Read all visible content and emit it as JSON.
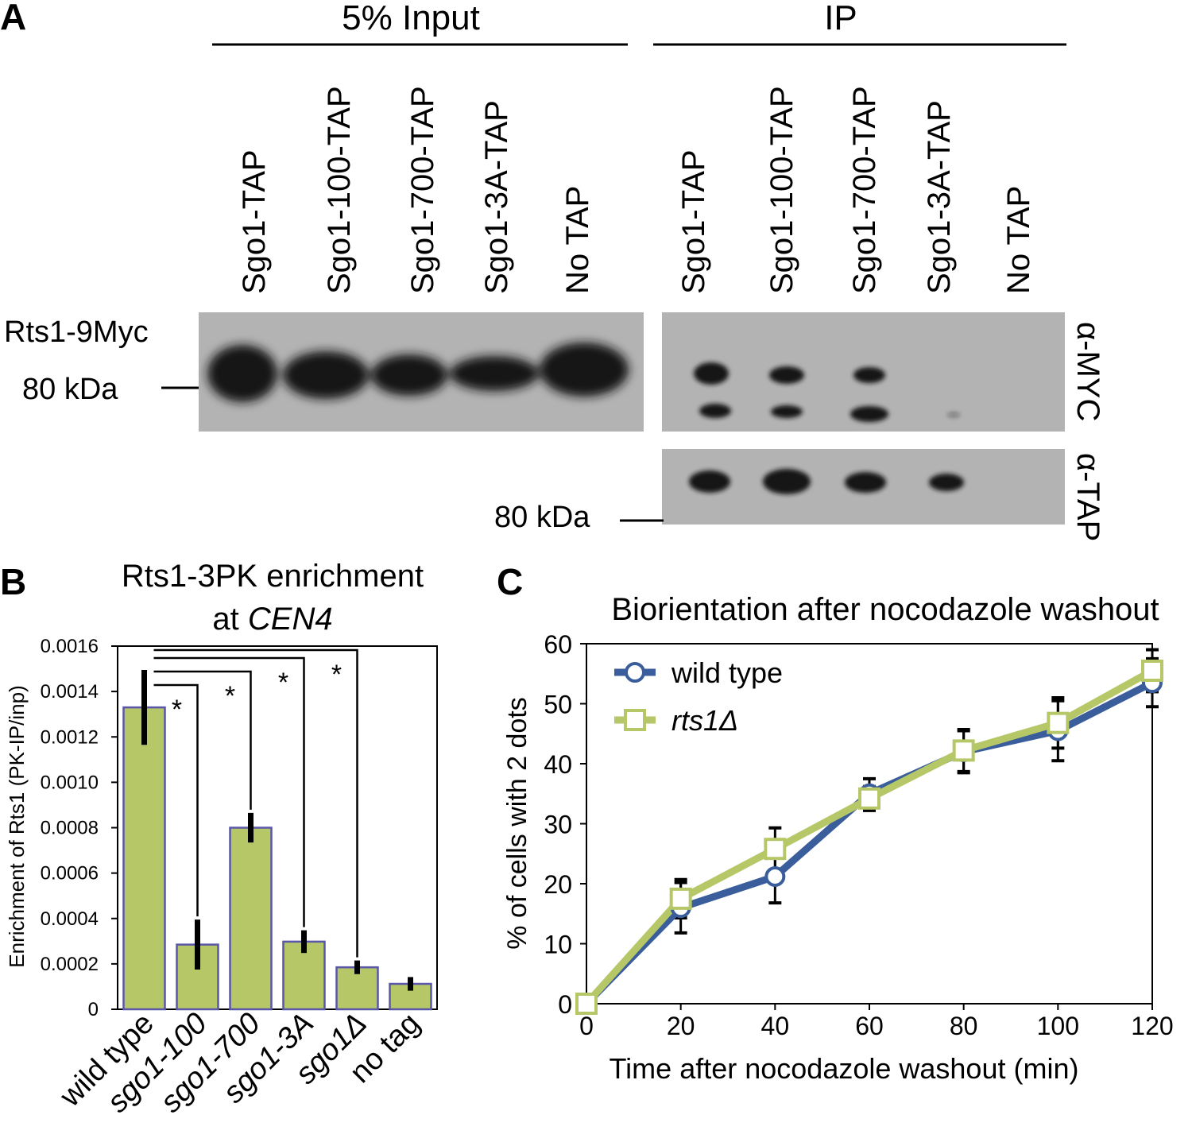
{
  "colors": {
    "blot_bg": "#b3b3b3",
    "band": "#141414",
    "bar_fill": "#b5c767",
    "bar_stroke": "#5a56a8",
    "wt_line": "#3a5d9c",
    "rts_line": "#b5c767"
  },
  "panel_a": {
    "label": "A",
    "input_header": "5% Input",
    "ip_header": "IP",
    "input_lanes": [
      "Sgo1-TAP",
      "Sgo1-100-TAP",
      "Sgo1-700-TAP",
      "Sgo1-3A-TAP",
      "No TAP"
    ],
    "ip_lanes": [
      "Sgo1-TAP",
      "Sgo1-100-TAP",
      "Sgo1-700-TAP",
      "Sgo1-3A-TAP",
      "No TAP"
    ],
    "protein_label": "Rts1-9Myc",
    "marker_left": "80 kDa",
    "marker_right": "80 kDa",
    "antibody_myc": "α-MYC",
    "antibody_tap": "α-TAP"
  },
  "chart_data": [
    {
      "panel": "B",
      "type": "bar",
      "title": "Rts1-3PK enrichment",
      "title_line2_prefix": "at ",
      "title_line2_italic": "CEN4",
      "ylabel": "Enrichment of Rts1 (PK-IP/inp)",
      "ylim": [
        0,
        0.0016
      ],
      "yticks": [
        "0",
        "0.0002",
        "0.0004",
        "0.0006",
        "0.0008",
        "0.0010",
        "0.0012",
        "0.0014",
        "0.0016"
      ],
      "categories": [
        "wild type",
        "sgo1-100",
        "sgo1-700",
        "sgo1-3A",
        "sgo1Δ",
        "no tag"
      ],
      "values": [
        0.00133,
        0.000285,
        0.0008,
        0.000298,
        0.000185,
        0.000112
      ],
      "errors": [
        0.000165,
        0.00011,
        6.5e-05,
        5e-05,
        3e-05,
        3e-05
      ],
      "significance": [
        {
          "from": "wild type",
          "to": "sgo1-100",
          "label": "*"
        },
        {
          "from": "wild type",
          "to": "sgo1-700",
          "label": "*"
        },
        {
          "from": "wild type",
          "to": "sgo1-3A",
          "label": "*"
        },
        {
          "from": "wild type",
          "to": "sgo1Δ",
          "label": "*"
        }
      ]
    },
    {
      "panel": "C",
      "type": "line",
      "title": "Biorientation after nocodazole washout",
      "xlabel": "Time after nocodazole washout (min)",
      "ylabel": "% of cells with 2 dots",
      "x": [
        0,
        20,
        40,
        60,
        80,
        100,
        120
      ],
      "xlim": [
        0,
        120
      ],
      "ylim": [
        0,
        60
      ],
      "xticks": [
        "0",
        "20",
        "40",
        "60",
        "80",
        "100",
        "120"
      ],
      "yticks": [
        "0",
        "10",
        "20",
        "30",
        "40",
        "50",
        "60"
      ],
      "legend_position": "top-left",
      "series": [
        {
          "name": "wild type",
          "marker": "circle",
          "values": [
            0,
            16,
            21.2,
            35,
            42,
            45.5,
            53.5
          ],
          "errors": [
            0,
            4.2,
            4.4,
            2.5,
            3.5,
            5,
            4
          ]
        },
        {
          "name": "rts1Δ",
          "marker": "square",
          "values": [
            0,
            17.5,
            25.8,
            34.2,
            42.2,
            46.8,
            55.5
          ],
          "errors": [
            0,
            3.2,
            3.5,
            2,
            3.5,
            4.2,
            3.5
          ]
        }
      ]
    }
  ]
}
